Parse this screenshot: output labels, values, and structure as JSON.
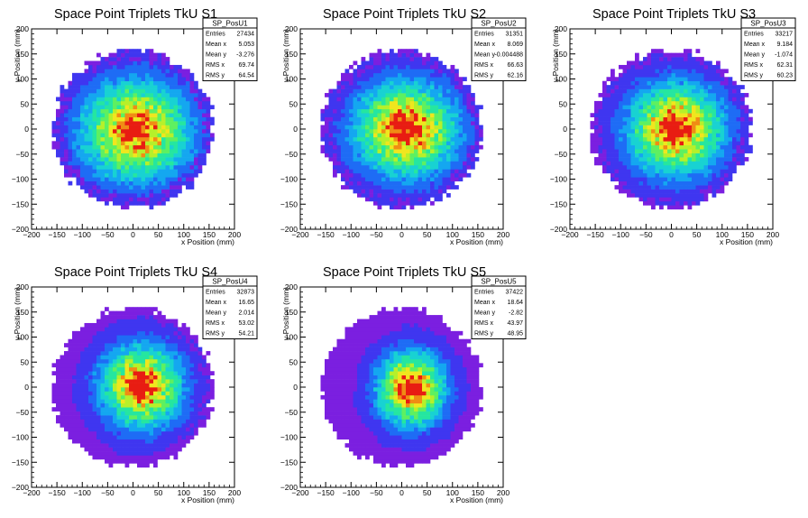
{
  "chart_data": [
    {
      "type": "heatmap",
      "title": "Space Point Triplets TkU S1",
      "xlabel": "x Position (mm)",
      "ylabel": "y Position (mm)",
      "xlim": [
        -200,
        200
      ],
      "ylim": [
        -200,
        200
      ],
      "xticks": [
        "−200",
        "−150",
        "−100",
        "−50",
        "0",
        "50",
        "100",
        "150",
        "200"
      ],
      "yticks": [
        "200",
        "150",
        "100",
        "50",
        "0",
        "−50",
        "−100",
        "−150",
        "−200"
      ],
      "stats": {
        "name": "SP_PosU1",
        "rows": [
          {
            "label": "Entries",
            "value": "27434"
          },
          {
            "label": "Mean x",
            "value": "5.053"
          },
          {
            "label": "Mean y",
            "value": "-3.276"
          },
          {
            "label": "RMS x",
            "value": "69.74"
          },
          {
            "label": "RMS y",
            "value": "64.54"
          }
        ]
      },
      "radius_mm": 160,
      "center_mm": [
        5,
        -3
      ],
      "spread_mm": [
        70,
        65
      ],
      "hot_mm": [
        0,
        0
      ]
    },
    {
      "type": "heatmap",
      "title": "Space Point Triplets TkU S2",
      "xlabel": "x Position (mm)",
      "ylabel": "y Position (mm)",
      "xlim": [
        -200,
        200
      ],
      "ylim": [
        -200,
        200
      ],
      "xticks": [
        "−200",
        "−150",
        "−100",
        "−50",
        "0",
        "50",
        "100",
        "150",
        "200"
      ],
      "yticks": [
        "200",
        "150",
        "100",
        "50",
        "0",
        "−50",
        "−100",
        "−150",
        "−200"
      ],
      "stats": {
        "name": "SP_PosU2",
        "rows": [
          {
            "label": "Entries",
            "value": "31351"
          },
          {
            "label": "Mean x",
            "value": "8.069"
          },
          {
            "label": "Mean y",
            "value": "-0.004488"
          },
          {
            "label": "RMS x",
            "value": "66.63"
          },
          {
            "label": "RMS y",
            "value": "62.16"
          }
        ]
      },
      "radius_mm": 160,
      "center_mm": [
        8,
        0
      ],
      "spread_mm": [
        67,
        62
      ],
      "hot_mm": [
        5,
        5
      ]
    },
    {
      "type": "heatmap",
      "title": "Space Point Triplets TkU S3",
      "xlabel": "x Position (mm)",
      "ylabel": "y Position (mm)",
      "xlim": [
        -200,
        200
      ],
      "ylim": [
        -200,
        200
      ],
      "xticks": [
        "−200",
        "−150",
        "−100",
        "−50",
        "0",
        "50",
        "100",
        "150",
        "200"
      ],
      "yticks": [
        "200",
        "150",
        "100",
        "50",
        "0",
        "−50",
        "−100",
        "−150",
        "−200"
      ],
      "stats": {
        "name": "SP_PosU3",
        "rows": [
          {
            "label": "Entries",
            "value": "33217"
          },
          {
            "label": "Mean x",
            "value": "9.184"
          },
          {
            "label": "Mean y",
            "value": "-1.074"
          },
          {
            "label": "RMS x",
            "value": "62.31"
          },
          {
            "label": "RMS y",
            "value": "60.23"
          }
        ]
      },
      "radius_mm": 160,
      "center_mm": [
        9,
        -1
      ],
      "spread_mm": [
        62,
        60
      ],
      "hot_mm": [
        5,
        0
      ]
    },
    {
      "type": "heatmap",
      "title": "Space Point Triplets TkU S4",
      "xlabel": "x Position (mm)",
      "ylabel": "y Position (mm)",
      "xlim": [
        -200,
        200
      ],
      "ylim": [
        -200,
        200
      ],
      "xticks": [
        "−200",
        "−150",
        "−100",
        "−50",
        "0",
        "50",
        "100",
        "150",
        "200"
      ],
      "yticks": [
        "200",
        "150",
        "100",
        "50",
        "0",
        "−50",
        "−100",
        "−150",
        "−200"
      ],
      "stats": {
        "name": "SP_PosU4",
        "rows": [
          {
            "label": "Entries",
            "value": "32873"
          },
          {
            "label": "Mean x",
            "value": "16.65"
          },
          {
            "label": "Mean y",
            "value": "2.014"
          },
          {
            "label": "RMS x",
            "value": "53.02"
          },
          {
            "label": "RMS y",
            "value": "54.21"
          }
        ]
      },
      "radius_mm": 160,
      "center_mm": [
        17,
        2
      ],
      "spread_mm": [
        53,
        54
      ],
      "hot_mm": [
        15,
        5
      ]
    },
    {
      "type": "heatmap",
      "title": "Space Point Triplets TkU S5",
      "xlabel": "x Position (mm)",
      "ylabel": "y Position (mm)",
      "xlim": [
        -200,
        200
      ],
      "ylim": [
        -200,
        200
      ],
      "xticks": [
        "−200",
        "−150",
        "−100",
        "−50",
        "0",
        "50",
        "100",
        "150",
        "200"
      ],
      "yticks": [
        "200",
        "150",
        "100",
        "50",
        "0",
        "−50",
        "−100",
        "−150",
        "−200"
      ],
      "stats": {
        "name": "SP_PosU5",
        "rows": [
          {
            "label": "Entries",
            "value": "37422"
          },
          {
            "label": "Mean x",
            "value": "18.64"
          },
          {
            "label": "Mean y",
            "value": "-2.82"
          },
          {
            "label": "RMS x",
            "value": "43.97"
          },
          {
            "label": "RMS y",
            "value": "48.95"
          }
        ]
      },
      "radius_mm": 160,
      "center_mm": [
        19,
        -3
      ],
      "spread_mm": [
        44,
        49
      ],
      "hot_mm": [
        20,
        0
      ]
    }
  ],
  "colors": {
    "palette": [
      "#7b1fe0",
      "#3f36f0",
      "#1e6cf5",
      "#14a7f0",
      "#18d2d2",
      "#25e6a0",
      "#5ef060",
      "#b6f02a",
      "#f0e61e",
      "#f08c14",
      "#e81c12"
    ]
  }
}
